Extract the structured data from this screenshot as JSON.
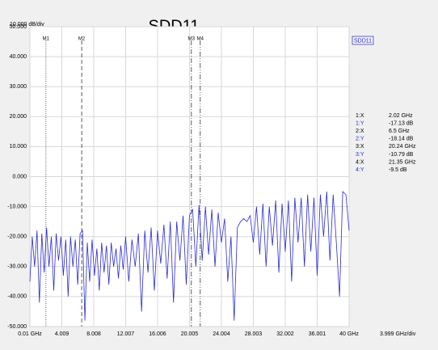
{
  "chart_data": {
    "type": "line",
    "title": "SDD11",
    "y_scale_label": "10.000 dB/div",
    "x_scale_label": "3.999 GHz/div",
    "legend": "SDD11",
    "grid": true,
    "xlim": [
      0.01,
      40
    ],
    "ylim": [
      -50,
      50
    ],
    "xticks": [
      {
        "value": 0.01,
        "label": "0.01 GHz"
      },
      4.009,
      8.008,
      12.007,
      16.006,
      20.005,
      24.004,
      28.003,
      32.002,
      36.001,
      {
        "value": 40,
        "label": "40 GHz"
      }
    ],
    "yticks": [
      {
        "value": 50,
        "label": "50.000"
      },
      {
        "value": 40,
        "label": "40.000"
      },
      {
        "value": 30,
        "label": "30.000"
      },
      {
        "value": 20,
        "label": "20.000"
      },
      {
        "value": 10,
        "label": "10.000"
      },
      {
        "value": 0,
        "label": "0.000"
      },
      {
        "value": -10,
        "label": "-10.000"
      },
      {
        "value": -20,
        "label": "-20.000"
      },
      {
        "value": -30,
        "label": "-30.000"
      },
      {
        "value": -40,
        "label": "-40.000"
      },
      {
        "value": -50,
        "label": "-50.000"
      }
    ],
    "x": [
      0.01,
      0.3,
      0.6,
      0.9,
      1.2,
      1.5,
      1.8,
      2.1,
      2.4,
      2.7,
      3.0,
      3.3,
      3.6,
      3.9,
      4.2,
      4.5,
      4.8,
      5.1,
      5.4,
      5.7,
      6.0,
      6.3,
      6.6,
      6.9,
      7.2,
      7.5,
      7.8,
      8.1,
      8.4,
      8.7,
      9.0,
      9.3,
      9.6,
      9.9,
      10.2,
      10.5,
      10.8,
      11.1,
      11.4,
      11.7,
      12.0,
      12.4,
      12.8,
      13.2,
      13.6,
      14.0,
      14.4,
      14.8,
      15.2,
      15.6,
      16.0,
      16.4,
      16.8,
      17.2,
      17.6,
      18.0,
      18.4,
      18.8,
      19.2,
      19.6,
      20.0,
      20.4,
      20.8,
      21.2,
      21.6,
      22.0,
      22.4,
      22.8,
      23.2,
      23.6,
      24.0,
      24.4,
      24.8,
      25.2,
      25.6,
      26.0,
      26.4,
      26.8,
      27.2,
      27.6,
      28.0,
      28.4,
      28.8,
      29.2,
      29.6,
      30.0,
      30.4,
      30.8,
      31.2,
      31.6,
      32.0,
      32.4,
      32.8,
      33.2,
      33.6,
      34.0,
      34.4,
      34.8,
      35.2,
      35.6,
      36.0,
      36.4,
      36.8,
      37.2,
      37.6,
      38.0,
      38.4,
      38.8,
      39.2,
      39.6,
      40.0
    ],
    "series": [
      {
        "name": "SDD11",
        "color": "#2b2bd6",
        "values": [
          -35,
          -20,
          -30,
          -18,
          -42,
          -19,
          -32,
          -17,
          -30,
          -20,
          -38,
          -19,
          -28,
          -20,
          -33,
          -21,
          -40,
          -20,
          -30,
          -21,
          -36,
          -19,
          -18,
          -48,
          -22,
          -35,
          -21,
          -33,
          -24,
          -38,
          -22,
          -32,
          -23,
          -36,
          -22,
          -30,
          -24,
          -34,
          -23,
          -31,
          -20,
          -35,
          -21,
          -30,
          -19,
          -45,
          -18,
          -32,
          -17,
          -38,
          -18,
          -29,
          -16,
          -34,
          -15,
          -42,
          -15,
          -28,
          -13,
          -36,
          -13,
          -11,
          -30,
          -9.5,
          -28,
          -10,
          -26,
          -11,
          -30,
          -12,
          -22,
          -14,
          -35,
          -20,
          -48,
          -17,
          -15,
          -14,
          -15,
          -13,
          -22,
          -10,
          -26,
          -9,
          -30,
          -10,
          -23,
          -8,
          -32,
          -9,
          -25,
          -8,
          -35,
          -7,
          -22,
          -7,
          -30,
          -6,
          -25,
          -7,
          -33,
          -6,
          -20,
          -5,
          -28,
          -6,
          -22,
          -40,
          -5,
          -6,
          -18
        ]
      }
    ],
    "markers": [
      {
        "name": "M1",
        "x": 2.02
      },
      {
        "name": "M2",
        "x": 6.5
      },
      {
        "name": "M3",
        "x": 20.24
      },
      {
        "name": "M4",
        "x": 21.35
      }
    ],
    "marker_table": [
      {
        "label": "1:X",
        "value": "2.02 GHz"
      },
      {
        "label": "1:Y",
        "value": "-17.13 dB"
      },
      {
        "label": "2:X",
        "value": "6.5 GHz"
      },
      {
        "label": "2:Y",
        "value": "-18.14 dB"
      },
      {
        "label": "3:X",
        "value": "20.24 GHz"
      },
      {
        "label": "3:Y",
        "value": "-10.79 dB"
      },
      {
        "label": "4:X",
        "value": "21.35 GHz"
      },
      {
        "label": "4:Y",
        "value": "-9.5 dB"
      }
    ]
  }
}
